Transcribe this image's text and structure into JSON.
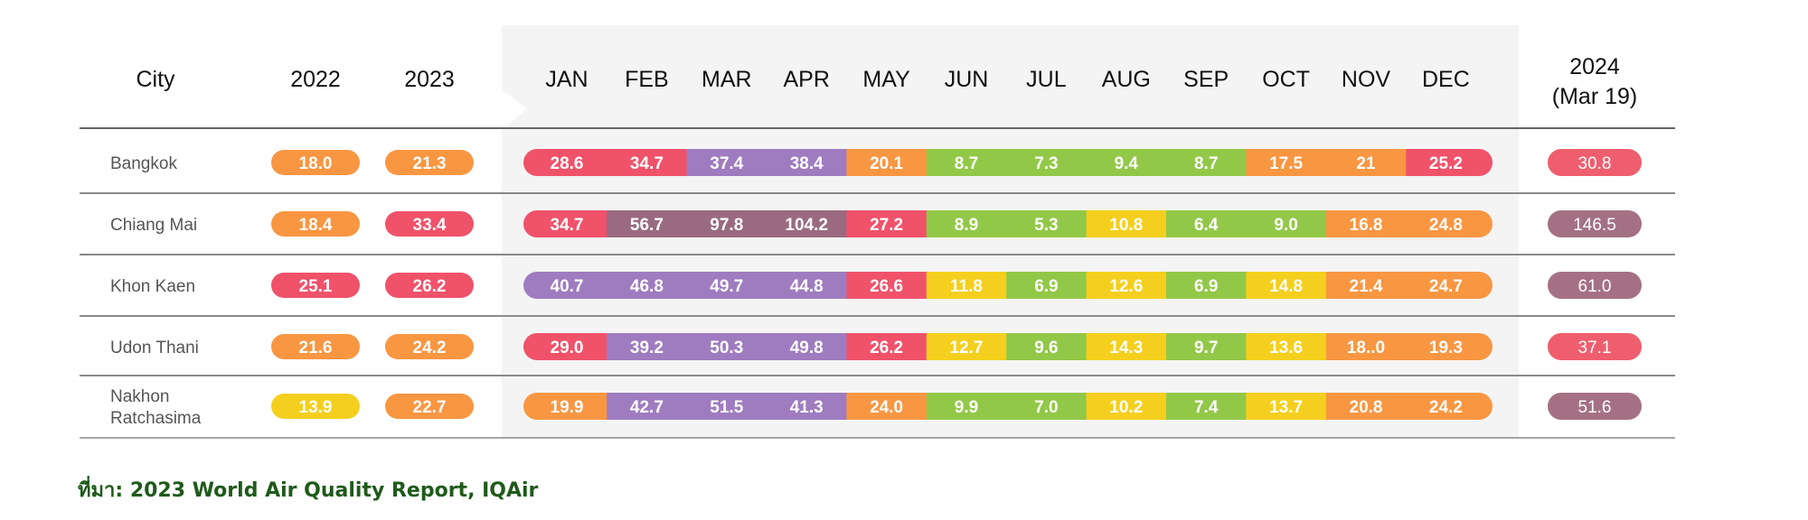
{
  "chart_data": {
    "type": "table",
    "columns": {
      "city": "City",
      "annual": [
        "2022",
        "2023"
      ],
      "months": [
        "JAN",
        "FEB",
        "MAR",
        "APR",
        "MAY",
        "JUN",
        "JUL",
        "AUG",
        "SEP",
        "OCT",
        "NOV",
        "DEC"
      ],
      "current": [
        "2024",
        "(Mar 19)"
      ]
    },
    "rows": [
      {
        "city": [
          "Bangkok"
        ],
        "annual": [
          "18.0",
          "21.3"
        ],
        "months": [
          "28.6",
          "34.7",
          "37.4",
          "38.4",
          "20.1",
          "8.7",
          "7.3",
          "9.4",
          "8.7",
          "17.5",
          "21",
          "25.2"
        ],
        "current": "30.8"
      },
      {
        "city": [
          "Chiang Mai"
        ],
        "annual": [
          "18.4",
          "33.4"
        ],
        "months": [
          "34.7",
          "56.7",
          "97.8",
          "104.2",
          "27.2",
          "8.9",
          "5.3",
          "10.8",
          "6.4",
          "9.0",
          "16.8",
          "24.8"
        ],
        "current": "146.5"
      },
      {
        "city": [
          "Khon Kaen"
        ],
        "annual": [
          "25.1",
          "26.2"
        ],
        "months": [
          "40.7",
          "46.8",
          "49.7",
          "44.8",
          "26.6",
          "11.8",
          "6.9",
          "12.6",
          "6.9",
          "14.8",
          "21.4",
          "24.7"
        ],
        "current": "61.0"
      },
      {
        "city": [
          "Udon Thani"
        ],
        "annual": [
          "21.6",
          "24.2"
        ],
        "months": [
          "29.0",
          "39.2",
          "50.3",
          "49.8",
          "26.2",
          "12.7",
          "9.6",
          "14.3",
          "9.7",
          "13.6",
          "18..0",
          "19.3"
        ],
        "current": "37.1"
      },
      {
        "city": [
          "Nakhon",
          "Ratchasima"
        ],
        "annual": [
          "13.9",
          "22.7"
        ],
        "months": [
          "19.9",
          "42.7",
          "51.5",
          "41.3",
          "24.0",
          "9.9",
          "7.0",
          "10.2",
          "7.4",
          "13.7",
          "20.8",
          "24.2"
        ],
        "current": "51.6"
      }
    ],
    "color_scale": {
      "yellow": "#f5cf1d",
      "green": "#92c848",
      "orange": "#f99642",
      "red": "#f0526a",
      "purple": "#9f7bc0",
      "maroon": "#9a6a80"
    },
    "current_colors": {
      "red": "#ef5e6e",
      "maroon": "#a47184"
    }
  },
  "source": "ที่มา: 2023 World Air Quality Report, IQAir"
}
